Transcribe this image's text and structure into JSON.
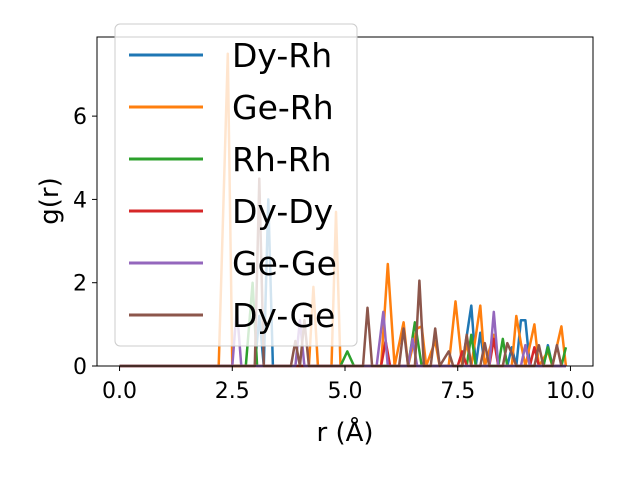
{
  "chart_data": {
    "type": "line",
    "xlabel": "r (Å)",
    "ylabel": "g(r)",
    "xlim": [
      -0.5,
      10.5
    ],
    "ylim": [
      0,
      7.9
    ],
    "x_ticks": [
      "0.0",
      "2.5",
      "5.0",
      "7.5",
      "10.0"
    ],
    "x_tick_values": [
      0.0,
      2.5,
      5.0,
      7.5,
      10.0
    ],
    "y_ticks": [
      "0",
      "2",
      "4",
      "6"
    ],
    "y_tick_values": [
      0,
      2,
      4,
      6
    ],
    "grid": false,
    "legend_position": "upper-left",
    "series": [
      {
        "name": "Dy-Rh",
        "color": "#1f77b4",
        "points": [
          [
            0,
            0
          ],
          [
            3.0,
            0
          ],
          [
            3.1,
            1.2
          ],
          [
            3.2,
            0
          ],
          [
            3.3,
            4.0
          ],
          [
            3.4,
            0
          ],
          [
            7.6,
            0
          ],
          [
            7.8,
            1.45
          ],
          [
            7.9,
            0
          ],
          [
            8.0,
            0.8
          ],
          [
            8.1,
            0
          ],
          [
            8.6,
            0
          ],
          [
            8.7,
            0.45
          ],
          [
            8.8,
            0
          ],
          [
            8.9,
            1.1
          ],
          [
            9.0,
            1.1
          ],
          [
            9.1,
            0
          ],
          [
            9.4,
            0
          ],
          [
            9.5,
            0.5
          ],
          [
            9.6,
            0
          ],
          [
            9.9,
            0
          ]
        ]
      },
      {
        "name": "Ge-Rh",
        "color": "#ff7f0e",
        "points": [
          [
            0,
            0
          ],
          [
            2.2,
            0
          ],
          [
            2.4,
            7.5
          ],
          [
            2.5,
            0
          ],
          [
            4.2,
            0
          ],
          [
            4.3,
            1.9
          ],
          [
            4.4,
            0
          ],
          [
            4.7,
            0
          ],
          [
            4.8,
            3.7
          ],
          [
            4.9,
            0
          ],
          [
            5.8,
            0
          ],
          [
            5.95,
            2.45
          ],
          [
            6.1,
            0
          ],
          [
            6.3,
            1.05
          ],
          [
            6.4,
            0
          ],
          [
            6.6,
            0.9
          ],
          [
            6.7,
            0.95
          ],
          [
            6.8,
            0
          ],
          [
            7.0,
            0.6
          ],
          [
            7.1,
            0
          ],
          [
            7.3,
            0
          ],
          [
            7.45,
            1.55
          ],
          [
            7.6,
            0
          ],
          [
            7.7,
            0.55
          ],
          [
            7.8,
            0
          ],
          [
            8.0,
            1.45
          ],
          [
            8.1,
            0
          ],
          [
            8.3,
            0.75
          ],
          [
            8.4,
            0
          ],
          [
            8.7,
            0
          ],
          [
            8.8,
            1.2
          ],
          [
            8.9,
            0.55
          ],
          [
            9.0,
            0
          ],
          [
            9.2,
            1.0
          ],
          [
            9.3,
            0
          ],
          [
            9.5,
            0.35
          ],
          [
            9.6,
            0
          ],
          [
            9.8,
            0.95
          ],
          [
            9.9,
            0
          ]
        ]
      },
      {
        "name": "Rh-Rh",
        "color": "#2ca02c",
        "points": [
          [
            0,
            0
          ],
          [
            2.8,
            0
          ],
          [
            2.95,
            2.0
          ],
          [
            3.05,
            0
          ],
          [
            4.9,
            0
          ],
          [
            5.05,
            0.35
          ],
          [
            5.2,
            0
          ],
          [
            6.4,
            0
          ],
          [
            6.55,
            1.05
          ],
          [
            6.7,
            0
          ],
          [
            7.7,
            0
          ],
          [
            7.8,
            0.75
          ],
          [
            7.9,
            0
          ],
          [
            8.4,
            0
          ],
          [
            8.5,
            0.65
          ],
          [
            8.6,
            0
          ],
          [
            9.4,
            0
          ],
          [
            9.5,
            0.45
          ],
          [
            9.6,
            0
          ],
          [
            9.8,
            0
          ],
          [
            9.9,
            0.45
          ]
        ]
      },
      {
        "name": "Dy-Dy",
        "color": "#d62728",
        "points": [
          [
            0,
            0
          ],
          [
            5.8,
            0
          ],
          [
            5.9,
            0.6
          ],
          [
            6.0,
            0
          ],
          [
            7.5,
            0
          ],
          [
            7.6,
            0.35
          ],
          [
            7.7,
            0
          ],
          [
            8.2,
            0
          ],
          [
            8.3,
            0.65
          ],
          [
            8.4,
            0
          ],
          [
            9.1,
            0
          ],
          [
            9.2,
            0.45
          ],
          [
            9.3,
            0
          ],
          [
            9.9,
            0
          ]
        ]
      },
      {
        "name": "Ge-Ge",
        "color": "#9467bd",
        "points": [
          [
            0,
            0
          ],
          [
            2.5,
            0
          ],
          [
            2.6,
            1.4
          ],
          [
            2.7,
            0
          ],
          [
            3.9,
            0
          ],
          [
            4.0,
            1.1
          ],
          [
            4.1,
            0
          ],
          [
            5.7,
            0
          ],
          [
            5.85,
            1.3
          ],
          [
            5.95,
            0
          ],
          [
            6.4,
            0
          ],
          [
            6.5,
            0.65
          ],
          [
            6.6,
            0
          ],
          [
            8.2,
            0
          ],
          [
            8.3,
            1.3
          ],
          [
            8.4,
            0
          ],
          [
            8.9,
            0
          ],
          [
            9.0,
            0.5
          ],
          [
            9.1,
            0
          ],
          [
            9.9,
            0
          ]
        ]
      },
      {
        "name": "Dy-Ge",
        "color": "#8c564b",
        "points": [
          [
            0,
            0
          ],
          [
            3.0,
            0
          ],
          [
            3.1,
            4.5
          ],
          [
            3.2,
            0
          ],
          [
            3.8,
            0
          ],
          [
            3.9,
            0.6
          ],
          [
            4.0,
            0
          ],
          [
            4.1,
            1.1
          ],
          [
            4.2,
            0
          ],
          [
            5.4,
            0
          ],
          [
            5.5,
            1.4
          ],
          [
            5.6,
            0
          ],
          [
            6.2,
            0
          ],
          [
            6.3,
            0.9
          ],
          [
            6.4,
            0
          ],
          [
            6.55,
            0
          ],
          [
            6.65,
            2.05
          ],
          [
            6.75,
            0
          ],
          [
            6.9,
            0
          ],
          [
            7.0,
            0.9
          ],
          [
            7.1,
            0
          ],
          [
            7.3,
            0.35
          ],
          [
            7.4,
            0
          ],
          [
            7.6,
            0
          ],
          [
            7.7,
            0.75
          ],
          [
            7.8,
            0
          ],
          [
            8.0,
            0
          ],
          [
            8.1,
            0.55
          ],
          [
            8.2,
            0
          ],
          [
            8.5,
            0
          ],
          [
            8.6,
            0.55
          ],
          [
            8.7,
            0.3
          ],
          [
            8.8,
            0
          ],
          [
            9.2,
            0
          ],
          [
            9.3,
            0.5
          ],
          [
            9.4,
            0
          ],
          [
            9.6,
            0
          ],
          [
            9.7,
            0.5
          ],
          [
            9.8,
            0
          ]
        ]
      }
    ]
  }
}
